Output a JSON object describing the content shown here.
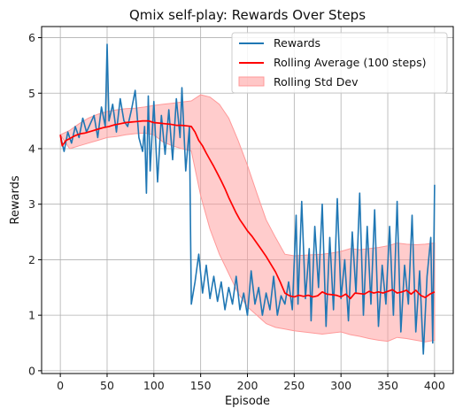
{
  "chart_data": {
    "type": "line",
    "title": "Qmix self-play: Rewards Over Steps",
    "xlabel": "Episode",
    "ylabel": "Rewards",
    "xlim": [
      -20,
      420
    ],
    "ylim": [
      -0.05,
      6.2
    ],
    "xticks": [
      0,
      50,
      100,
      150,
      200,
      250,
      300,
      350,
      400
    ],
    "yticks": [
      0,
      1,
      2,
      3,
      4,
      5,
      6
    ],
    "grid": true,
    "legend_position": "top-right",
    "colors": {
      "rewards": "#1f77b4",
      "rolling_avg": "#ff0000",
      "std_fill": "#ff9999"
    },
    "series": [
      {
        "name": "Rewards",
        "x": [
          0,
          4,
          8,
          12,
          16,
          20,
          24,
          28,
          32,
          36,
          40,
          44,
          48,
          50,
          52,
          56,
          60,
          64,
          68,
          72,
          76,
          80,
          84,
          88,
          90,
          92,
          94,
          96,
          100,
          104,
          108,
          112,
          116,
          120,
          124,
          128,
          130,
          134,
          138,
          140,
          144,
          148,
          152,
          156,
          160,
          164,
          168,
          172,
          176,
          180,
          184,
          188,
          192,
          196,
          200,
          204,
          208,
          212,
          216,
          220,
          224,
          228,
          232,
          236,
          240,
          244,
          248,
          252,
          254,
          258,
          262,
          266,
          268,
          272,
          276,
          280,
          284,
          288,
          292,
          296,
          300,
          304,
          308,
          312,
          316,
          320,
          324,
          328,
          332,
          336,
          340,
          344,
          348,
          352,
          356,
          360,
          364,
          368,
          372,
          376,
          380,
          384,
          388,
          392,
          396,
          398,
          400
        ],
        "values": [
          4.25,
          3.95,
          4.3,
          4.1,
          4.4,
          4.2,
          4.55,
          4.3,
          4.45,
          4.6,
          4.2,
          4.75,
          4.4,
          5.88,
          4.5,
          4.8,
          4.3,
          4.9,
          4.5,
          4.4,
          4.7,
          5.05,
          4.2,
          3.95,
          4.4,
          3.2,
          4.95,
          3.6,
          4.85,
          3.4,
          4.6,
          3.9,
          4.7,
          3.8,
          4.9,
          4.2,
          5.1,
          3.6,
          4.4,
          1.2,
          1.6,
          2.1,
          1.4,
          1.9,
          1.3,
          1.7,
          1.25,
          1.6,
          1.1,
          1.5,
          1.2,
          1.7,
          1.1,
          1.4,
          1.0,
          1.8,
          1.2,
          1.5,
          1.0,
          1.4,
          1.1,
          1.7,
          1.0,
          1.35,
          1.2,
          1.6,
          1.1,
          2.8,
          1.2,
          3.05,
          1.3,
          2.2,
          0.9,
          2.6,
          1.5,
          3.0,
          0.8,
          2.4,
          1.1,
          3.1,
          1.3,
          2.0,
          0.9,
          2.5,
          1.4,
          3.2,
          1.0,
          2.6,
          1.2,
          2.9,
          0.8,
          1.9,
          1.2,
          2.6,
          1.0,
          3.05,
          0.7,
          1.9,
          1.2,
          2.8,
          0.7,
          1.8,
          0.3,
          1.7,
          2.4,
          0.5,
          3.35
        ]
      },
      {
        "name": "Rolling Average (100 steps)",
        "x": [
          0,
          2,
          6,
          10,
          14,
          18,
          22,
          26,
          30,
          34,
          40,
          46,
          52,
          58,
          64,
          70,
          76,
          82,
          88,
          94,
          100,
          106,
          112,
          118,
          124,
          130,
          136,
          140,
          144,
          148,
          152,
          156,
          160,
          164,
          168,
          172,
          176,
          180,
          184,
          188,
          192,
          196,
          200,
          205,
          210,
          215,
          220,
          225,
          230,
          235,
          240,
          245,
          250,
          255,
          260,
          265,
          270,
          275,
          280,
          285,
          290,
          295,
          300,
          305,
          310,
          315,
          320,
          325,
          330,
          335,
          340,
          345,
          350,
          355,
          360,
          365,
          370,
          375,
          380,
          385,
          390,
          395,
          400
        ],
        "values": [
          4.25,
          4.05,
          4.15,
          4.18,
          4.22,
          4.25,
          4.27,
          4.28,
          4.3,
          4.32,
          4.35,
          4.38,
          4.4,
          4.43,
          4.45,
          4.47,
          4.48,
          4.49,
          4.5,
          4.5,
          4.47,
          4.46,
          4.45,
          4.44,
          4.42,
          4.42,
          4.41,
          4.4,
          4.3,
          4.15,
          4.05,
          3.92,
          3.8,
          3.68,
          3.55,
          3.42,
          3.28,
          3.12,
          2.98,
          2.84,
          2.72,
          2.62,
          2.52,
          2.42,
          2.3,
          2.18,
          2.06,
          1.92,
          1.78,
          1.6,
          1.4,
          1.35,
          1.33,
          1.36,
          1.34,
          1.36,
          1.33,
          1.35,
          1.42,
          1.38,
          1.37,
          1.36,
          1.33,
          1.38,
          1.3,
          1.4,
          1.39,
          1.38,
          1.43,
          1.4,
          1.42,
          1.4,
          1.43,
          1.46,
          1.4,
          1.42,
          1.45,
          1.38,
          1.45,
          1.36,
          1.32,
          1.38,
          1.42
        ]
      },
      {
        "name": "Rolling Std Dev",
        "x": [
          0,
          10,
          20,
          30,
          40,
          50,
          60,
          70,
          80,
          90,
          100,
          110,
          120,
          130,
          140,
          150,
          160,
          170,
          180,
          190,
          200,
          210,
          220,
          230,
          240,
          250,
          260,
          270,
          280,
          290,
          300,
          310,
          320,
          330,
          340,
          350,
          360,
          370,
          380,
          390,
          400
        ],
        "upper": [
          4.25,
          4.33,
          4.45,
          4.55,
          4.62,
          4.67,
          4.7,
          4.72,
          4.73,
          4.75,
          4.78,
          4.8,
          4.82,
          4.84,
          4.86,
          4.97,
          4.93,
          4.8,
          4.55,
          4.15,
          3.7,
          3.2,
          2.72,
          2.4,
          2.1,
          2.07,
          2.08,
          2.09,
          2.1,
          2.12,
          2.15,
          2.2,
          2.18,
          2.2,
          2.22,
          2.25,
          2.3,
          2.28,
          2.27,
          2.28,
          2.3
        ],
        "lower": [
          4.25,
          4.0,
          4.05,
          4.1,
          4.15,
          4.2,
          4.22,
          4.25,
          4.27,
          4.28,
          4.25,
          4.12,
          4.05,
          4.0,
          3.96,
          3.15,
          2.55,
          2.1,
          1.75,
          1.4,
          1.15,
          1.0,
          0.85,
          0.78,
          0.75,
          0.72,
          0.7,
          0.68,
          0.66,
          0.68,
          0.7,
          0.65,
          0.62,
          0.58,
          0.55,
          0.53,
          0.6,
          0.58,
          0.55,
          0.52,
          0.55
        ]
      }
    ]
  }
}
